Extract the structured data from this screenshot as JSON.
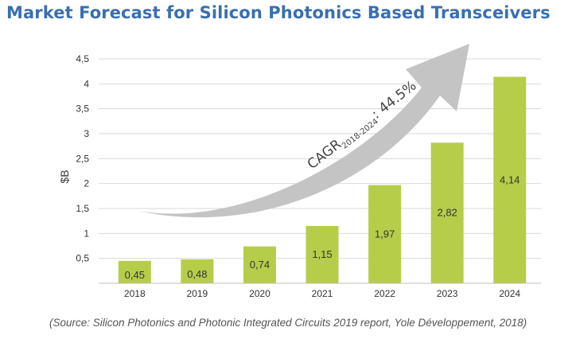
{
  "page": {
    "title": "Market Forecast for Silicon Photonics Based Transceivers",
    "source": "(Source: Silicon Photonics and Photonic Integrated Circuits 2019 report, Yole Développement, 2018)"
  },
  "colors": {
    "bar": "#b6cd4a",
    "grid": "#d9d9d9",
    "arrow": "#c4c4c4",
    "title": "#3a6fb0"
  },
  "chart_data": {
    "type": "bar",
    "title": "Market Forecast for Silicon Photonics Based Transceivers",
    "xlabel": "",
    "ylabel": "$B",
    "ylim": [
      0,
      4.5
    ],
    "yticks": [
      0.5,
      1,
      1.5,
      2,
      2.5,
      3,
      3.5,
      4,
      4.5
    ],
    "ytick_labels": [
      "0,5",
      "1",
      "1,5",
      "2",
      "2,5",
      "3",
      "3,5",
      "4",
      "4,5"
    ],
    "grid": true,
    "categories": [
      "2018",
      "2019",
      "2020",
      "2021",
      "2022",
      "2023",
      "2024"
    ],
    "values": [
      0.45,
      0.48,
      0.74,
      1.15,
      1.97,
      2.82,
      4.14
    ],
    "value_labels": [
      "0,45",
      "0,48",
      "0,74",
      "1,15",
      "1,97",
      "2,82",
      "4,14"
    ],
    "annotation": {
      "main": "CAGR",
      "subscript": "2018-2024",
      "suffix": ": 44.5%"
    }
  }
}
